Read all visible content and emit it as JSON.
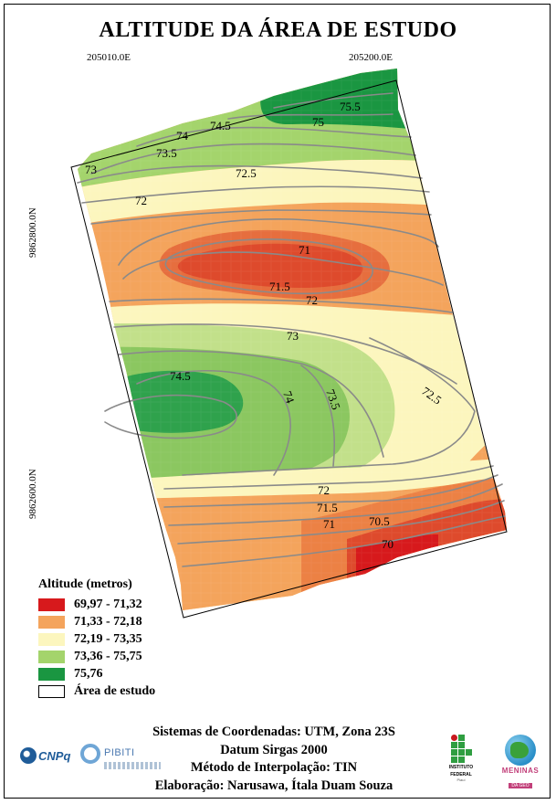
{
  "title": "ALTITUDE DA ÁREA DE ESTUDO",
  "coords": {
    "easting_1": "205010.0E",
    "easting_2": "205200.0E",
    "northing_1": "9862800.0N",
    "northing_2": "9862600.0N"
  },
  "contour_labels": [
    "75.5",
    "75",
    "74.5",
    "74",
    "73.5",
    "73",
    "72.5",
    "72",
    "71",
    "71.5",
    "72",
    "73",
    "74.5",
    "74",
    "73.5",
    "72.5",
    "72",
    "71.5",
    "71",
    "70.5",
    "70"
  ],
  "legend": {
    "title": "Altitude (metros)",
    "items": [
      {
        "label": "69,97 - 71,32",
        "color": "#d7191c"
      },
      {
        "label": "71,33 - 72,18",
        "color": "#f4a45c"
      },
      {
        "label": "72,19 - 73,35",
        "color": "#fcf6be"
      },
      {
        "label": "73,36 - 75,75",
        "color": "#a4d46c"
      },
      {
        "label": "75,76",
        "color": "#1a9641"
      }
    ],
    "area_label": "Área de estudo"
  },
  "info": {
    "line1": "Sistemas de Coordenadas: UTM, Zona 23S",
    "line2": "Datum Sirgas 2000",
    "line3": "Método de Interpolação: TIN",
    "line4": "Elaboração: Narusawa, Ítala Duam Souza"
  },
  "logos": {
    "cnpq": "CNPq",
    "pibiti": "PIBITI",
    "ifpi_line1": "INSTITUTO",
    "ifpi_line2": "FEDERAL",
    "ifpi_line3": "Piauí",
    "meninas_top": "MENINAS",
    "meninas_bottom": "DA GEO"
  }
}
